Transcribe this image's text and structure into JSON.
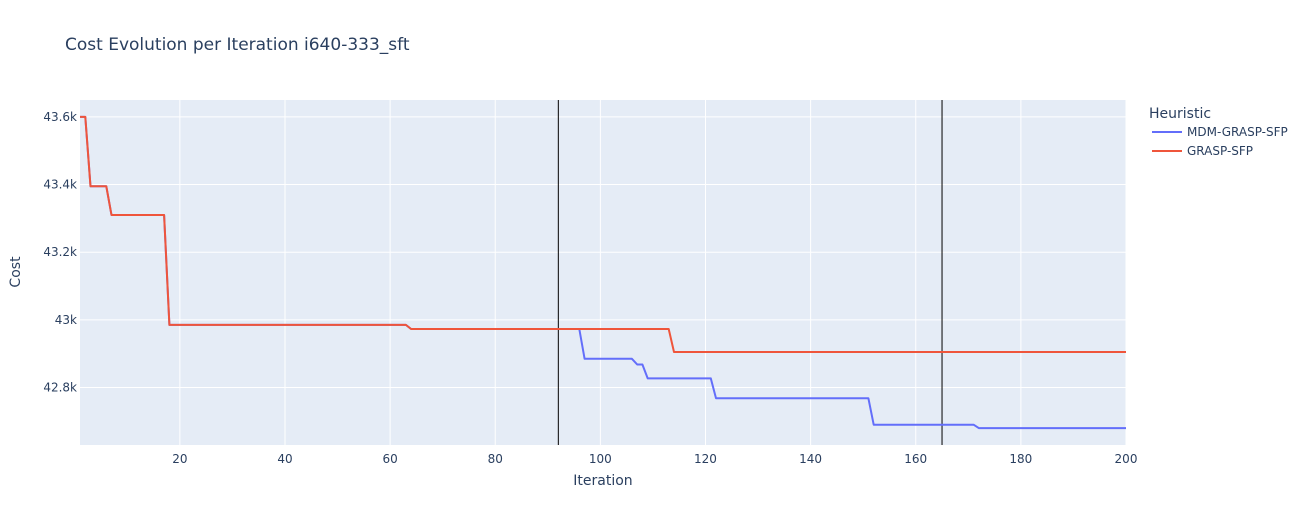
{
  "chart_data": {
    "type": "line",
    "title": "Cost Evolution per Iteration i640-333_sft",
    "xlabel": "Iteration",
    "ylabel": "Cost",
    "xlim": [
      1,
      200
    ],
    "ylim": [
      42630,
      43650
    ],
    "x_ticks": [
      20,
      40,
      60,
      80,
      100,
      120,
      140,
      160,
      180,
      200
    ],
    "y_ticks": [
      {
        "value": 42800,
        "label": "42.8k"
      },
      {
        "value": 43000,
        "label": "43k"
      },
      {
        "value": 43200,
        "label": "43.2k"
      },
      {
        "value": 43400,
        "label": "43.4k"
      },
      {
        "value": 43600,
        "label": "43.6k"
      }
    ],
    "vlines": [
      92,
      165
    ],
    "grid": true,
    "legend": {
      "title": "Heuristic",
      "position": "right"
    },
    "series": [
      {
        "name": "MDM-GRASP-SFP",
        "color": "#636efa",
        "points": [
          [
            1,
            43600
          ],
          [
            2,
            43600
          ],
          [
            3,
            43395
          ],
          [
            6,
            43395
          ],
          [
            7,
            43310
          ],
          [
            17,
            43310
          ],
          [
            18,
            42985
          ],
          [
            63,
            42985
          ],
          [
            64,
            42973
          ],
          [
            96,
            42973
          ],
          [
            97,
            42885
          ],
          [
            106,
            42885
          ],
          [
            107,
            42868
          ],
          [
            108,
            42868
          ],
          [
            109,
            42827
          ],
          [
            121,
            42827
          ],
          [
            122,
            42768
          ],
          [
            151,
            42768
          ],
          [
            152,
            42690
          ],
          [
            171,
            42690
          ],
          [
            172,
            42680
          ],
          [
            200,
            42680
          ]
        ]
      },
      {
        "name": "GRASP-SFP",
        "color": "#ef553b",
        "points": [
          [
            1,
            43600
          ],
          [
            2,
            43600
          ],
          [
            3,
            43395
          ],
          [
            6,
            43395
          ],
          [
            7,
            43310
          ],
          [
            17,
            43310
          ],
          [
            18,
            42985
          ],
          [
            63,
            42985
          ],
          [
            64,
            42973
          ],
          [
            113,
            42973
          ],
          [
            114,
            42905
          ],
          [
            200,
            42905
          ]
        ]
      }
    ],
    "colors": {
      "plot_bg": "#e5ecf6",
      "grid": "#ffffff",
      "vline": "#000000",
      "text": "#2a3f5f"
    }
  }
}
